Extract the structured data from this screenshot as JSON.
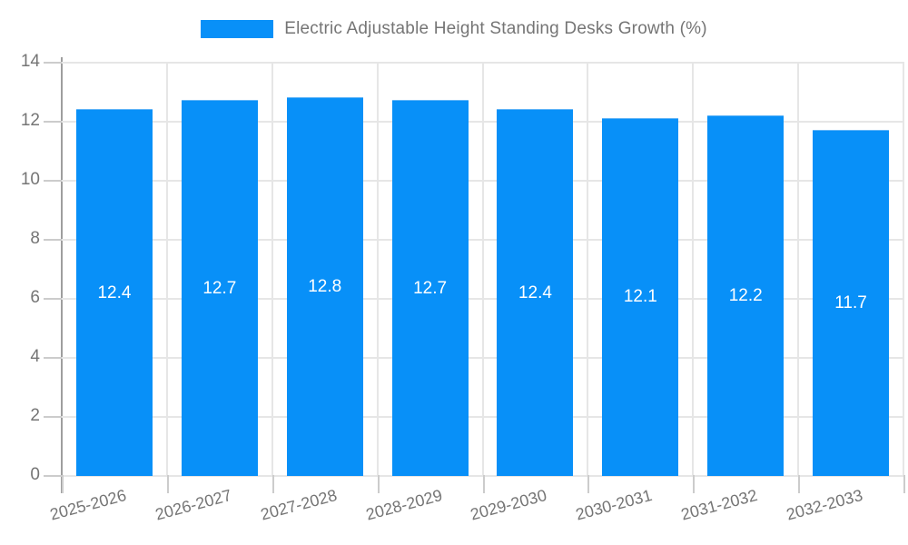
{
  "legend": {
    "label": "Electric Adjustable Height Standing Desks Growth (%)"
  },
  "colors": {
    "bar": "#0890F8",
    "axis_text": "#757575",
    "grid_line": "#e6e6e6",
    "axis_line": "#9e9e9e",
    "tick_line": "#cccccc",
    "value_label": "#ffffff"
  },
  "chart_data": {
    "type": "bar",
    "title": "Electric Adjustable Height Standing Desks Growth (%)",
    "categories": [
      "2025-2026",
      "2026-2027",
      "2027-2028",
      "2028-2029",
      "2029-2030",
      "2030-2031",
      "2031-2032",
      "2032-2033"
    ],
    "values": [
      12.4,
      12.7,
      12.8,
      12.7,
      12.4,
      12.1,
      12.2,
      11.7
    ],
    "bar_labels": [
      "12.4",
      "12.7",
      "12.8",
      "12.7",
      "12.4",
      "12.1",
      "12.2",
      "11.7"
    ],
    "xlabel": "",
    "ylabel": "",
    "ylim": [
      0,
      14
    ],
    "yticks": [
      0,
      2,
      4,
      6,
      8,
      10,
      12,
      14
    ],
    "grid": "both",
    "legend_position": "top",
    "x_tick_label_rotation_deg": -15
  }
}
